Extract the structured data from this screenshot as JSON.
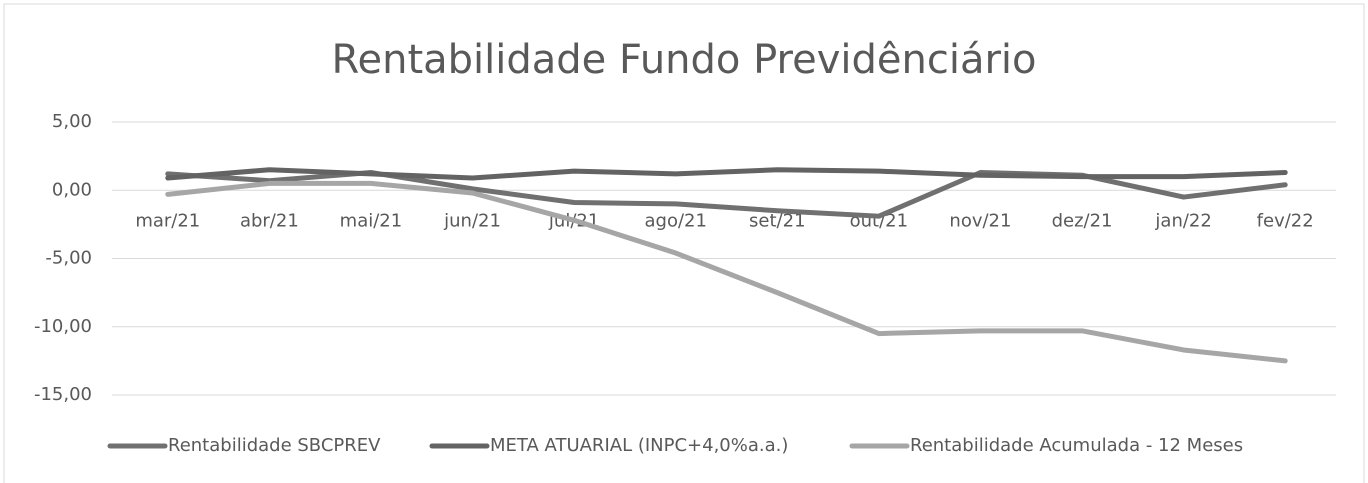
{
  "chart_data": {
    "type": "line",
    "title": "Rentabilidade Fundo Previdênciário",
    "categories": [
      "mar/21",
      "abr/21",
      "mai/21",
      "jun/21",
      "jul/21",
      "ago/21",
      "set/21",
      "out/21",
      "nov/21",
      "dez/21",
      "jan/22",
      "fev/22"
    ],
    "series": [
      {
        "name": "Rentabilidade SBCPREV",
        "color": "#707070",
        "values": [
          1.2,
          0.7,
          1.3,
          0.1,
          -0.9,
          -1.0,
          -1.5,
          -1.9,
          1.3,
          1.1,
          -0.5,
          0.4
        ]
      },
      {
        "name": "META ATUARIAL (INPC+4,0%a.a.)",
        "color": "#636363",
        "values": [
          0.9,
          1.5,
          1.2,
          0.9,
          1.4,
          1.2,
          1.5,
          1.4,
          1.1,
          1.0,
          1.0,
          1.3
        ]
      },
      {
        "name": "Rentabilidade Acumulada - 12 Meses",
        "color": "#a6a6a6",
        "values": [
          -0.3,
          0.5,
          0.5,
          -0.2,
          -2.2,
          -4.6,
          -7.5,
          -10.5,
          -10.3,
          -10.3,
          -11.7,
          -12.5
        ]
      }
    ],
    "ylim": [
      -15,
      5
    ],
    "yticks": [
      {
        "value": 5,
        "label": "5,00"
      },
      {
        "value": 0,
        "label": "0,00"
      },
      {
        "value": -5,
        "label": "-5,00"
      },
      {
        "value": -10,
        "label": "-10,00"
      },
      {
        "value": -15,
        "label": "-15,00"
      }
    ],
    "grid": true,
    "legend": "bottom"
  }
}
